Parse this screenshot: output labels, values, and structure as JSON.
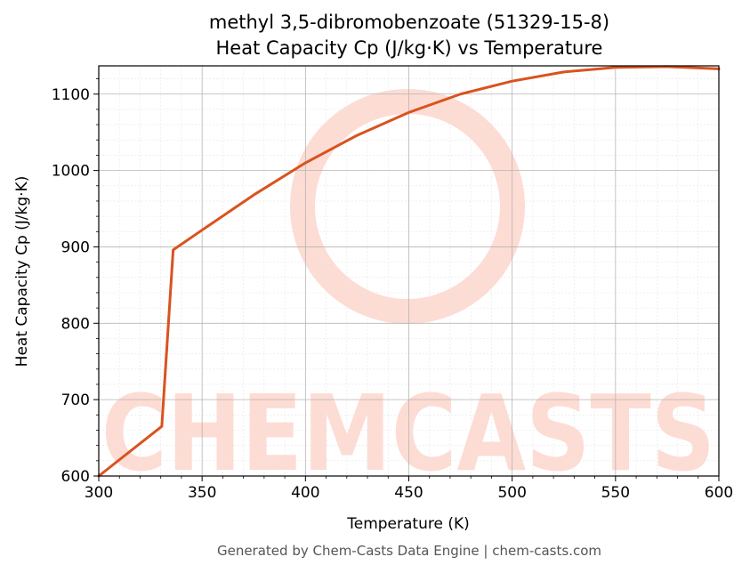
{
  "chart_data": {
    "type": "line",
    "title_line1": "methyl 3,5-dibromobenzoate (51329-15-8)",
    "title_line2": "Heat Capacity Cp (J/kg·K) vs Temperature",
    "xlabel": "Temperature (K)",
    "ylabel": "Heat Capacity Cp (J/kg·K)",
    "xlim": [
      300,
      600
    ],
    "ylim": [
      600,
      1137
    ],
    "xticks": [
      300,
      350,
      400,
      450,
      500,
      550,
      600
    ],
    "yticks": [
      600,
      700,
      800,
      900,
      1000,
      1100
    ],
    "grid": true,
    "series": [
      {
        "color": "#d9531e",
        "x": [
          300,
          330.5,
          336,
          350,
          375,
          400,
          425,
          450,
          475,
          500,
          525,
          550,
          575,
          600
        ],
        "y": [
          600,
          665,
          896,
          922,
          968,
          1010,
          1046,
          1076,
          1100,
          1117,
          1129,
          1135,
          1136,
          1133
        ]
      }
    ]
  },
  "watermark": {
    "text": "CHEMCASTS",
    "color": "#fddcd4"
  },
  "footer": "Generated by Chem-Casts Data Engine | chem-casts.com"
}
